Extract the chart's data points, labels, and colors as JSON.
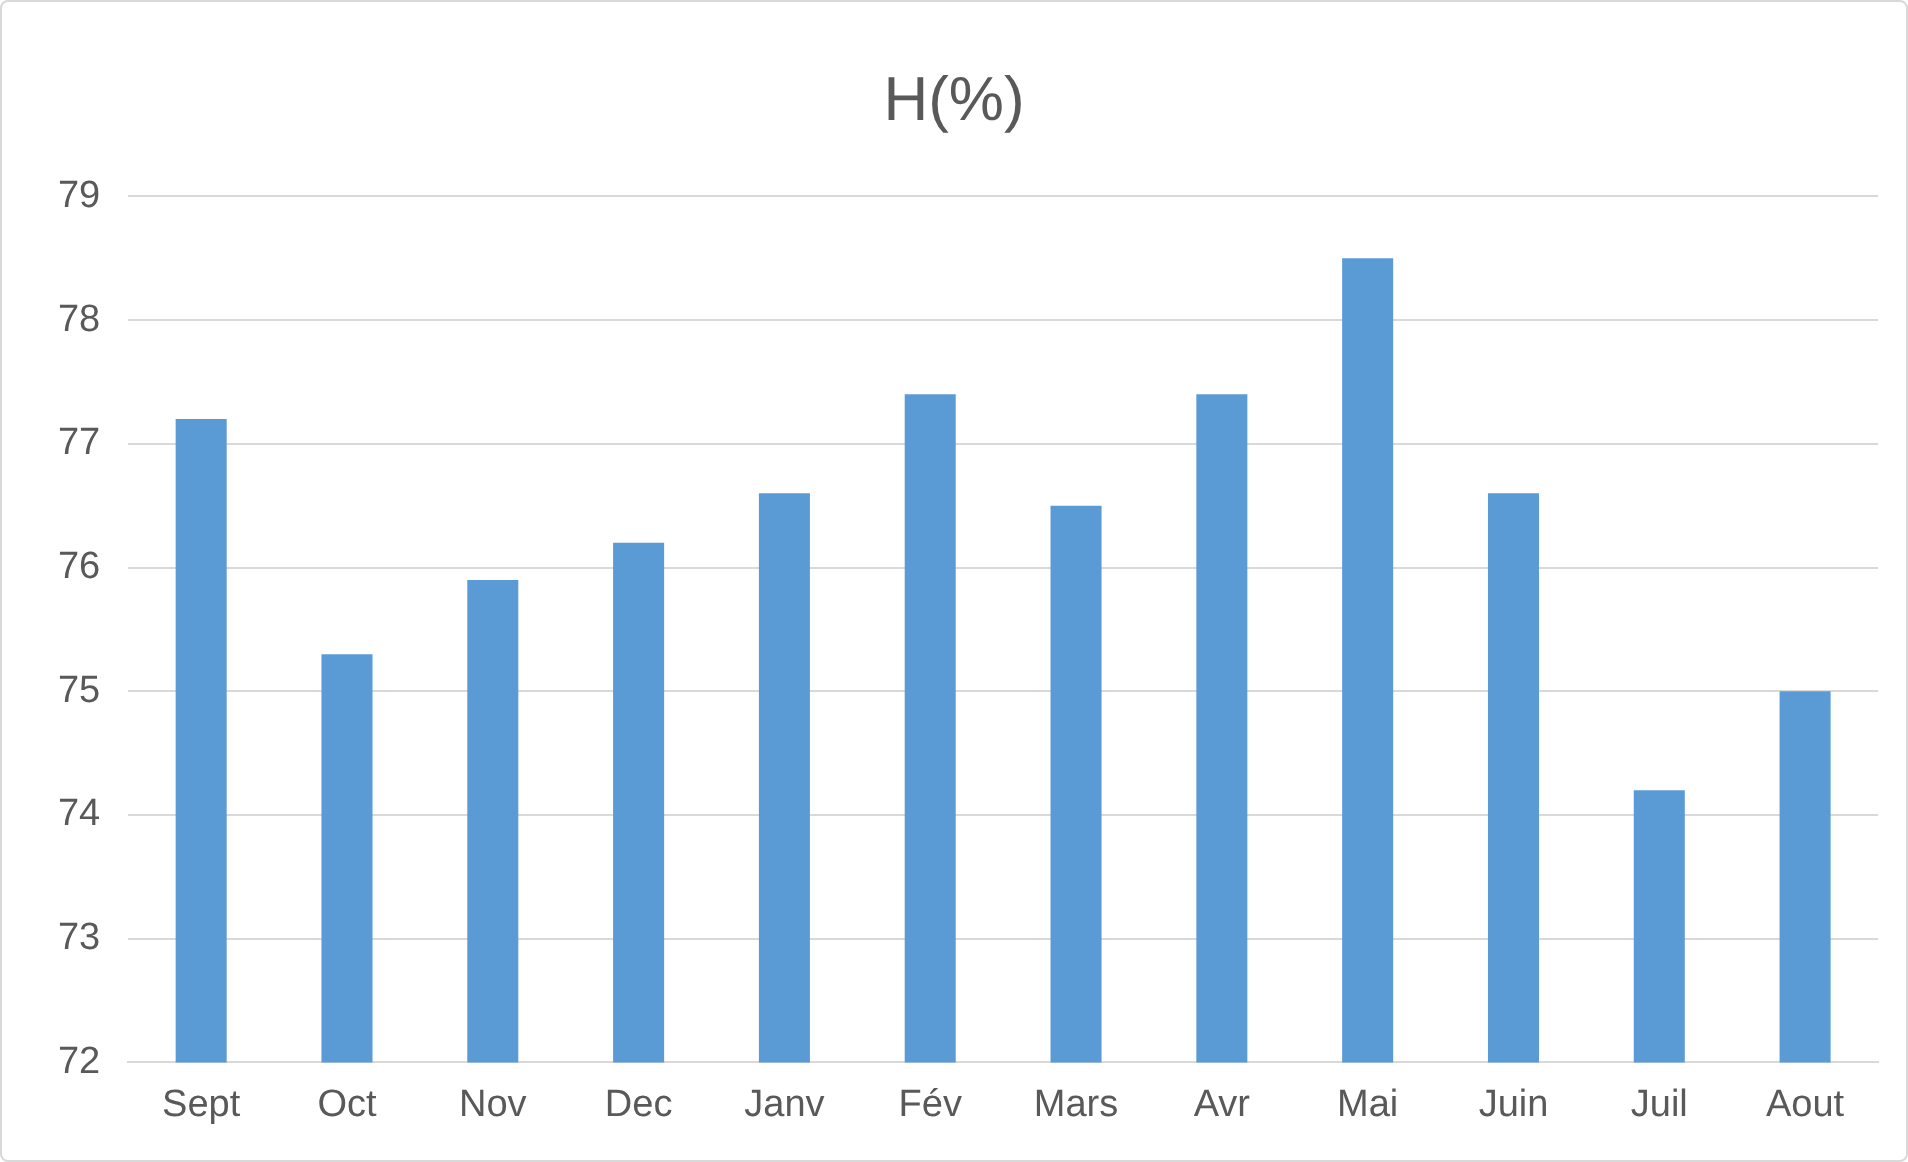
{
  "chart_data": {
    "type": "bar",
    "title": "H(%)",
    "categories": [
      "Sept",
      "Oct",
      "Nov",
      "Dec",
      "Janv",
      "Fév",
      "Mars",
      "Avr",
      "Mai",
      "Juin",
      "Juil",
      "Aout"
    ],
    "values": [
      77.2,
      75.3,
      75.9,
      76.2,
      76.6,
      77.4,
      76.5,
      77.4,
      78.5,
      76.6,
      74.2,
      75.0
    ],
    "color": "#5b9bd5",
    "ylim": [
      72,
      79
    ],
    "yticks": [
      72,
      73,
      74,
      75,
      76,
      77,
      78,
      79
    ],
    "grid": "y",
    "legend": false
  }
}
